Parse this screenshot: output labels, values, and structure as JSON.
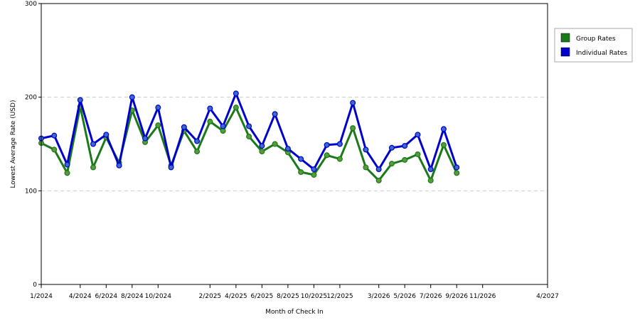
{
  "chart_data": {
    "type": "line",
    "title": "",
    "xlabel": "Month of Check In",
    "ylabel": "Lowest Average Rate (USD)",
    "ylim": [
      0,
      300
    ],
    "yticks": [
      0,
      100,
      200,
      300
    ],
    "grid": true,
    "legend_position": "top-right",
    "x": [
      "1/2024",
      "2/2024",
      "3/2024",
      "4/2024",
      "5/2024",
      "6/2024",
      "7/2024",
      "8/2024",
      "9/2024",
      "10/2024",
      "11/2024",
      "12/2024",
      "1/2025",
      "2/2025",
      "3/2025",
      "4/2025",
      "5/2025",
      "6/2025",
      "7/2025",
      "8/2025",
      "9/2025",
      "10/2025",
      "11/2025",
      "12/2025",
      "1/2026",
      "2/2026",
      "3/2026",
      "4/2026",
      "5/2026",
      "6/2026",
      "7/2026",
      "8/2026",
      "9/2026",
      "10/2026",
      "11/2026",
      "12/2026",
      "1/2027",
      "2/2027",
      "3/2027",
      "4/2027"
    ],
    "x_tick_labels": [
      "1/2024",
      "4/2024",
      "6/2024",
      "8/2024",
      "10/2024",
      "2/2025",
      "4/2025",
      "6/2025",
      "8/2025",
      "10/2025",
      "12/2025",
      "3/2026",
      "5/2026",
      "7/2026",
      "9/2026",
      "11/2026",
      "4/2027"
    ],
    "series": [
      {
        "name": "Group Rates",
        "color": "#1a7a1a",
        "marker_color": "#5a9a3a",
        "points": [
          {
            "x": "1/2024",
            "y": 151
          },
          {
            "x": "2/2024",
            "y": 144
          },
          {
            "x": "3/2024",
            "y": 119
          },
          {
            "x": "4/2024",
            "y": 190
          },
          {
            "x": "5/2024",
            "y": 125
          },
          {
            "x": "6/2024",
            "y": 157
          },
          {
            "x": "7/2024",
            "y": 130
          },
          {
            "x": "8/2024",
            "y": 186
          },
          {
            "x": "9/2024",
            "y": 152
          },
          {
            "x": "10/2024",
            "y": 170
          },
          {
            "x": "11/2024",
            "y": 127
          },
          {
            "x": "12/2024",
            "y": 164
          },
          {
            "x": "1/2025",
            "y": 142
          },
          {
            "x": "2/2025",
            "y": 174
          },
          {
            "x": "3/2025",
            "y": 164
          },
          {
            "x": "4/2025",
            "y": 189
          },
          {
            "x": "5/2025",
            "y": 158
          },
          {
            "x": "6/2025",
            "y": 142
          },
          {
            "x": "7/2025",
            "y": 150
          },
          {
            "x": "8/2025",
            "y": 141
          },
          {
            "x": "9/2025",
            "y": 120
          },
          {
            "x": "10/2025",
            "y": 117
          },
          {
            "x": "11/2025",
            "y": 138
          },
          {
            "x": "12/2025",
            "y": 134
          },
          {
            "x": "1/2026",
            "y": 167
          },
          {
            "x": "2/2026",
            "y": 125
          },
          {
            "x": "3/2026",
            "y": 111
          },
          {
            "x": "4/2026",
            "y": 129
          },
          {
            "x": "5/2026",
            "y": 133
          },
          {
            "x": "6/2026",
            "y": 139
          },
          {
            "x": "7/2026",
            "y": 111
          },
          {
            "x": "8/2026",
            "y": 149
          },
          {
            "x": "9/2026",
            "y": 119
          }
        ]
      },
      {
        "name": "Individual Rates",
        "color": "#0000cc",
        "marker_color": "#3a6acc",
        "points": [
          {
            "x": "1/2024",
            "y": 156
          },
          {
            "x": "2/2024",
            "y": 159
          },
          {
            "x": "3/2024",
            "y": 128
          },
          {
            "x": "4/2024",
            "y": 197
          },
          {
            "x": "5/2024",
            "y": 150
          },
          {
            "x": "6/2024",
            "y": 160
          },
          {
            "x": "7/2024",
            "y": 127
          },
          {
            "x": "8/2024",
            "y": 200
          },
          {
            "x": "9/2024",
            "y": 156
          },
          {
            "x": "10/2024",
            "y": 189
          },
          {
            "x": "11/2024",
            "y": 125
          },
          {
            "x": "12/2024",
            "y": 168
          },
          {
            "x": "1/2025",
            "y": 153
          },
          {
            "x": "2/2025",
            "y": 188
          },
          {
            "x": "3/2025",
            "y": 169
          },
          {
            "x": "4/2025",
            "y": 204
          },
          {
            "x": "5/2025",
            "y": 169
          },
          {
            "x": "6/2025",
            "y": 148
          },
          {
            "x": "7/2025",
            "y": 182
          },
          {
            "x": "8/2025",
            "y": 145
          },
          {
            "x": "9/2025",
            "y": 134
          },
          {
            "x": "10/2025",
            "y": 123
          },
          {
            "x": "11/2025",
            "y": 149
          },
          {
            "x": "12/2025",
            "y": 150
          },
          {
            "x": "1/2026",
            "y": 194
          },
          {
            "x": "2/2026",
            "y": 144
          },
          {
            "x": "3/2026",
            "y": 123
          },
          {
            "x": "4/2026",
            "y": 146
          },
          {
            "x": "5/2026",
            "y": 148
          },
          {
            "x": "6/2026",
            "y": 160
          },
          {
            "x": "7/2026",
            "y": 123
          },
          {
            "x": "8/2026",
            "y": 166
          },
          {
            "x": "9/2026",
            "y": 125
          }
        ]
      }
    ]
  }
}
